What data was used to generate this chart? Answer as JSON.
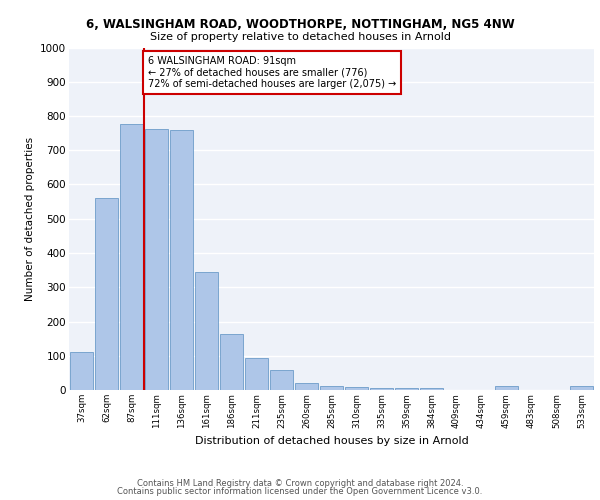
{
  "title1": "6, WALSINGHAM ROAD, WOODTHORPE, NOTTINGHAM, NG5 4NW",
  "title2": "Size of property relative to detached houses in Arnold",
  "xlabel": "Distribution of detached houses by size in Arnold",
  "ylabel": "Number of detached properties",
  "categories": [
    "37sqm",
    "62sqm",
    "87sqm",
    "111sqm",
    "136sqm",
    "161sqm",
    "186sqm",
    "211sqm",
    "235sqm",
    "260sqm",
    "285sqm",
    "310sqm",
    "335sqm",
    "359sqm",
    "384sqm",
    "409sqm",
    "434sqm",
    "459sqm",
    "483sqm",
    "508sqm",
    "533sqm"
  ],
  "values": [
    110,
    560,
    776,
    762,
    760,
    345,
    163,
    93,
    57,
    20,
    13,
    9,
    7,
    7,
    7,
    0,
    0,
    13,
    0,
    0,
    13
  ],
  "bar_color": "#aec6e8",
  "bar_edge_color": "#5a8fc2",
  "annotation_text": "6 WALSINGHAM ROAD: 91sqm\n← 27% of detached houses are smaller (776)\n72% of semi-detached houses are larger (2,075) →",
  "annotation_box_color": "#ffffff",
  "annotation_box_edge_color": "#cc0000",
  "line_color": "#cc0000",
  "footer1": "Contains HM Land Registry data © Crown copyright and database right 2024.",
  "footer2": "Contains public sector information licensed under the Open Government Licence v3.0.",
  "bg_color": "#eef2f9",
  "grid_color": "#ffffff",
  "ylim": [
    0,
    1000
  ],
  "yticks": [
    0,
    100,
    200,
    300,
    400,
    500,
    600,
    700,
    800,
    900,
    1000
  ]
}
